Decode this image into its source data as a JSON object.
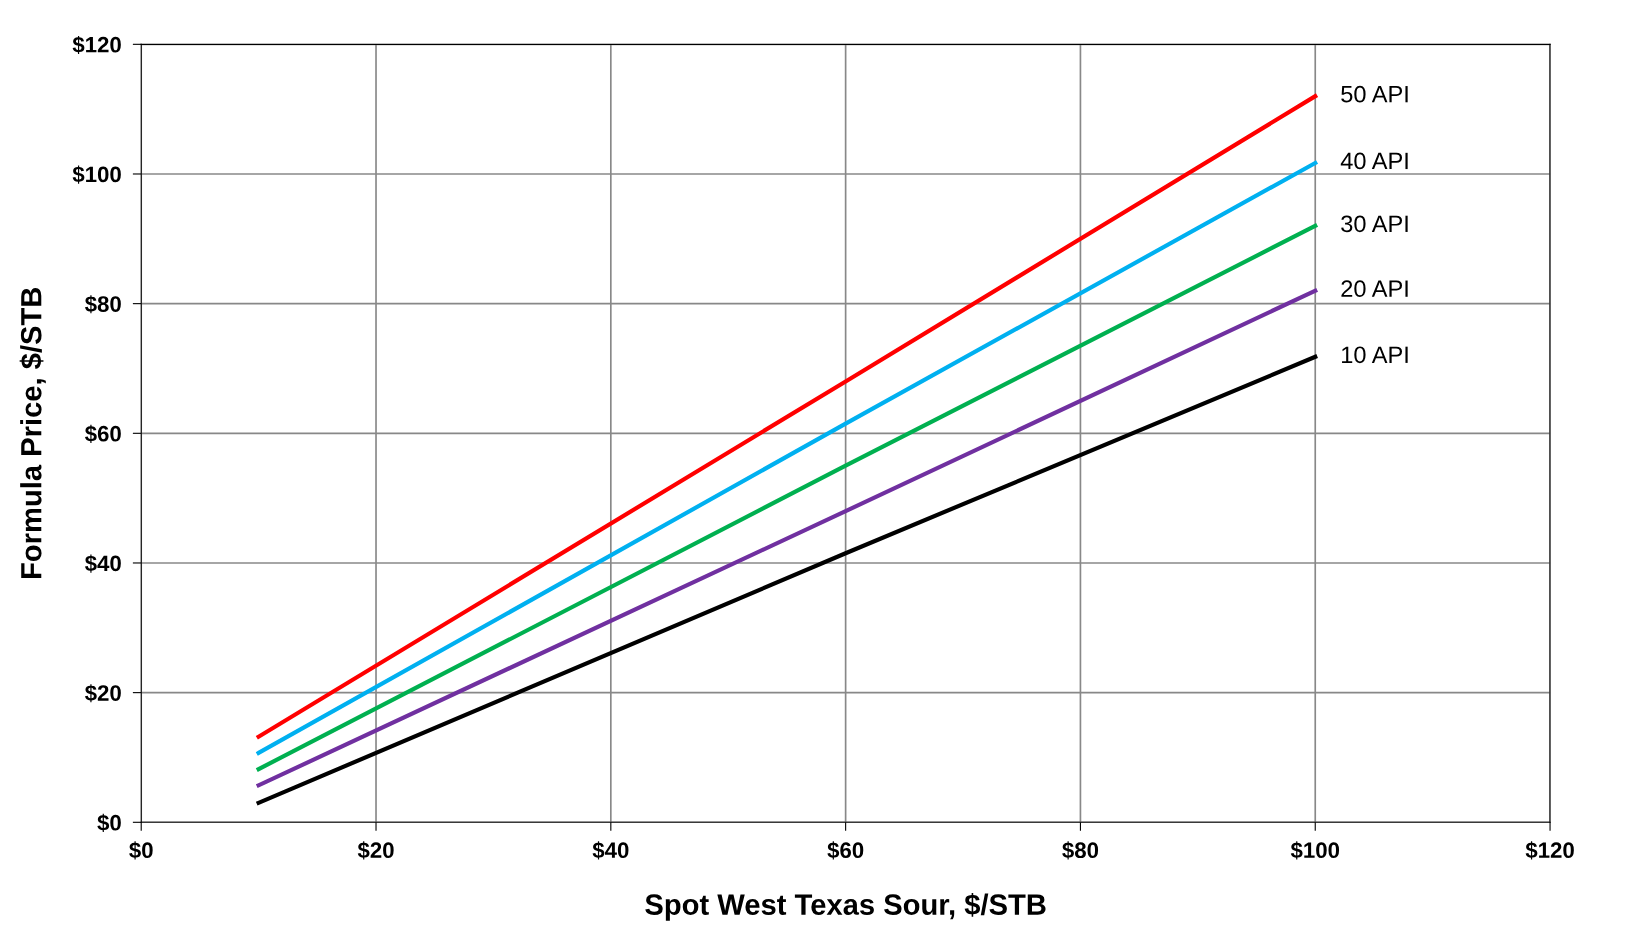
{
  "chart_data": {
    "type": "line",
    "xlabel": "Spot West Texas Sour, $/STB",
    "ylabel": "Formula Price, $/STB",
    "x": [
      10,
      60,
      100
    ],
    "series": [
      {
        "name": "50 API",
        "color": "#ff0000",
        "values": [
          13.2,
          68,
          112
        ]
      },
      {
        "name": "40 API",
        "color": "#00b0f0",
        "values": [
          10.7,
          61.5,
          101.7
        ]
      },
      {
        "name": "30 API",
        "color": "#00b050",
        "values": [
          8.2,
          55,
          92
        ]
      },
      {
        "name": "20 API",
        "color": "#7030a0",
        "values": [
          5.7,
          48,
          82
        ]
      },
      {
        "name": "10 API",
        "color": "#000000",
        "values": [
          3.0,
          41.5,
          71.8
        ]
      }
    ],
    "xlim": [
      0,
      120
    ],
    "ylim": [
      0,
      120
    ],
    "xticks": [
      {
        "value": 0,
        "label": "$0"
      },
      {
        "value": 20,
        "label": "$20"
      },
      {
        "value": 40,
        "label": "$40"
      },
      {
        "value": 60,
        "label": "$60"
      },
      {
        "value": 80,
        "label": "$80"
      },
      {
        "value": 100,
        "label": "$100"
      },
      {
        "value": 120,
        "label": "$120"
      }
    ],
    "yticks": [
      {
        "value": 0,
        "label": "$0"
      },
      {
        "value": 20,
        "label": "$20"
      },
      {
        "value": 40,
        "label": "$40"
      },
      {
        "value": 60,
        "label": "$60"
      },
      {
        "value": 80,
        "label": "$80"
      },
      {
        "value": 100,
        "label": "$100"
      },
      {
        "value": 120,
        "label": "$120"
      }
    ],
    "grid": true,
    "legend": false,
    "marker": "none",
    "line_style": "solid"
  }
}
